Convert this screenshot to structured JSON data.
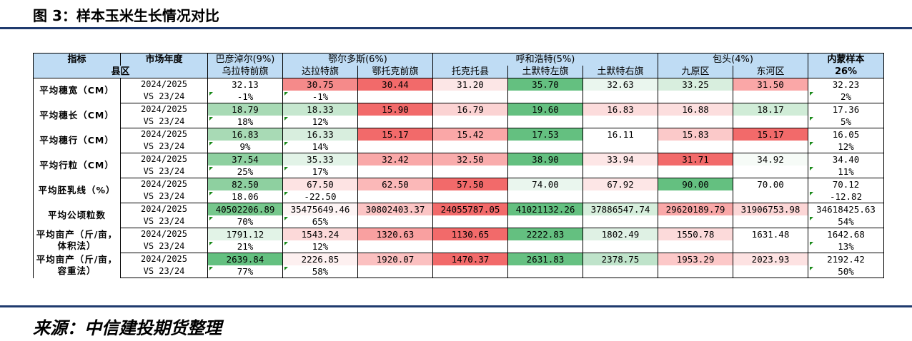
{
  "figure_title": "图 3：样本玉米生长情况对比",
  "source": "来源：中信建投期货整理",
  "colors": {
    "rule": "#1f3a6e",
    "header_bg": "#bfdcf4",
    "flag": "#1a8a1a"
  },
  "table": {
    "header1": {
      "indicator": "指标",
      "period": "市场年度",
      "bayan": "巴彦淖尔(9%)",
      "erdos": "鄂尔多斯(6%)",
      "hohhot": "呼和浩特(5%)",
      "baotou": "包头(4%)",
      "total": "内蒙样本"
    },
    "header2": {
      "county": "县区",
      "counties": [
        "乌拉特前旗",
        "达拉特旗",
        "鄂托克前旗",
        "托克托县",
        "土默特左旗",
        "土默特右旗",
        "九原区",
        "东河区"
      ],
      "total_share": "26%"
    },
    "rows": [
      {
        "label": "平均穗宽（CM）",
        "p1": "2024/2025",
        "p2": "VS 23/24",
        "values": [
          "32.13",
          "30.75",
          "30.44",
          "31.20",
          "35.70",
          "32.63",
          "33.25",
          "31.50",
          "32.23"
        ],
        "bg": [
          "#ffffff",
          "#f58a8a",
          "#f26a6a",
          "#fce6e6",
          "#64c080",
          "#eaf6ee",
          "#d8eede",
          "#faa7a7",
          "#ffffff"
        ],
        "changes": [
          "-1%",
          "-1%",
          "",
          "",
          "",
          "",
          "",
          "",
          "2%"
        ]
      },
      {
        "label": "平均穗长（CM）",
        "p1": "2024/2025",
        "p2": "VS 23/24",
        "values": [
          "18.79",
          "18.33",
          "15.90",
          "16.79",
          "19.60",
          "16.83",
          "16.88",
          "18.17",
          "17.36"
        ],
        "bg": [
          "#a8dab5",
          "#c6e7cf",
          "#f26a6a",
          "#fbd3d3",
          "#64c080",
          "#fcdcdc",
          "#fcdede",
          "#d0ecd7",
          "#ffffff"
        ],
        "changes": [
          "18%",
          "12%",
          "",
          "",
          "",
          "",
          "",
          "",
          "5%"
        ]
      },
      {
        "label": "平均穗行（CM）",
        "p1": "2024/2025",
        "p2": "VS 23/24",
        "values": [
          "16.83",
          "16.33",
          "15.17",
          "15.42",
          "17.53",
          "16.11",
          "15.83",
          "15.17",
          "16.05"
        ],
        "bg": [
          "#a8dab5",
          "#d8eede",
          "#f26a6a",
          "#faa7a7",
          "#64c080",
          "#ffffff",
          "#fbc9c9",
          "#f26a6a",
          "#ffffff"
        ],
        "changes": [
          "9%",
          "14%",
          "",
          "",
          "",
          "",
          "",
          "",
          "12%"
        ]
      },
      {
        "label": "平均行粒（CM）",
        "p1": "2024/2025",
        "p2": "VS 23/24",
        "values": [
          "37.54",
          "35.33",
          "32.42",
          "32.50",
          "38.90",
          "33.94",
          "31.71",
          "34.92",
          "34.40"
        ],
        "bg": [
          "#8ed0a0",
          "#e2f3e7",
          "#f9a8a8",
          "#f9acac",
          "#64c080",
          "#fde6e6",
          "#f26a6a",
          "#f6fbf7",
          "#ffffff"
        ],
        "changes": [
          "25%",
          "17%",
          "",
          "",
          "",
          "",
          "",
          "",
          "11%"
        ]
      },
      {
        "label": "平均胚乳线（%）",
        "p1": "2024/2025",
        "p2": "VS 23/24",
        "values": [
          "82.50",
          "67.50",
          "62.50",
          "57.50",
          "74.00",
          "67.92",
          "90.00",
          "70.00",
          "70.12"
        ],
        "bg": [
          "#8ed0a0",
          "#fde3e3",
          "#fbb8b8",
          "#f26a6a",
          "#eaf6ee",
          "#fde6e6",
          "#64c080",
          "#ffffff",
          "#ffffff"
        ],
        "changes": [
          "18.06",
          "-22.50",
          "",
          "",
          "",
          "",
          "",
          "",
          "-12.82"
        ]
      },
      {
        "label": "平均公顷粒数",
        "p1": "2024/2025",
        "p2": "VS 23/24",
        "values": [
          "40502206.89",
          "35475649.46",
          "30802403.37",
          "24055787.05",
          "41021132.26",
          "37886547.74",
          "29620189.79",
          "31906753.98",
          "34618425.63"
        ],
        "bg": [
          "#76c78c",
          "#fdf4f4",
          "#fbc4c4",
          "#f26a6a",
          "#64c080",
          "#d6eedc",
          "#f9a8a8",
          "#fcd6d6",
          "#ffffff"
        ],
        "changes": [
          "70%",
          "65%",
          "",
          "",
          "",
          "",
          "",
          "",
          "54%"
        ]
      },
      {
        "label": "平均亩产（斤/亩，体积法）",
        "p1": "2024/2025",
        "p2": "VS 23/24",
        "values": [
          "1791.12",
          "1543.24",
          "1320.63",
          "1130.65",
          "2222.83",
          "1802.49",
          "1550.78",
          "1631.48",
          "1642.68"
        ],
        "bg": [
          "#e2f3e7",
          "#fcd9d9",
          "#f9a0a0",
          "#f26a6a",
          "#64c080",
          "#dff1e4",
          "#fcdada",
          "#ffffff",
          "#ffffff"
        ],
        "changes": [
          "21%",
          "12%",
          "",
          "",
          "",
          "",
          "",
          "",
          "13%"
        ]
      },
      {
        "label": "平均亩产（斤/亩，容重法）",
        "p1": "2024/2025",
        "p2": "VS 23/24",
        "values": [
          "2639.84",
          "2226.85",
          "1920.07",
          "1470.37",
          "2631.83",
          "2378.75",
          "1953.29",
          "2023.93",
          "2192.42"
        ],
        "bg": [
          "#64c080",
          "#fdf0f0",
          "#fbc0c0",
          "#f26a6a",
          "#66c182",
          "#bfe3ca",
          "#fcc8c8",
          "#fde2e2",
          "#ffffff"
        ],
        "changes": [
          "77%",
          "58%",
          "",
          "",
          "",
          "",
          "",
          "",
          "50%"
        ]
      }
    ]
  }
}
